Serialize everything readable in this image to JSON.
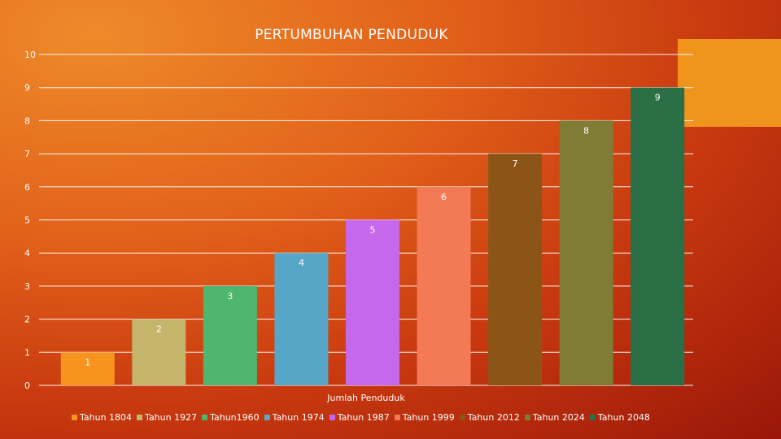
{
  "chart_data": {
    "type": "bar",
    "title": "PERTUMBUHAN PENDUDUK",
    "xlabel": "Jumlah Penduduk",
    "ylabel": "",
    "ylim": [
      0,
      10
    ],
    "yticks": [
      0,
      1,
      2,
      3,
      4,
      5,
      6,
      7,
      8,
      9,
      10
    ],
    "grid": true,
    "legend_position": "bottom",
    "series": [
      {
        "name": "Tahun 1804",
        "value": 1,
        "color": "#f7941d"
      },
      {
        "name": "Tahun 1927",
        "value": 2,
        "color": "#c4b56a"
      },
      {
        "name": "Tahun1960",
        "value": 3,
        "color": "#4fb56f"
      },
      {
        "name": "Tahun 1974",
        "value": 4,
        "color": "#56a6c8"
      },
      {
        "name": "Tahun 1987",
        "value": 5,
        "color": "#c668ec"
      },
      {
        "name": "Tahun 1999",
        "value": 6,
        "color": "#f47a56"
      },
      {
        "name": "Tahun 2012",
        "value": 7,
        "color": "#8c5518"
      },
      {
        "name": "Tahun 2024",
        "value": 8,
        "color": "#807b35"
      },
      {
        "name": "Tahun 2048",
        "value": 9,
        "color": "#2a6f45"
      }
    ]
  }
}
